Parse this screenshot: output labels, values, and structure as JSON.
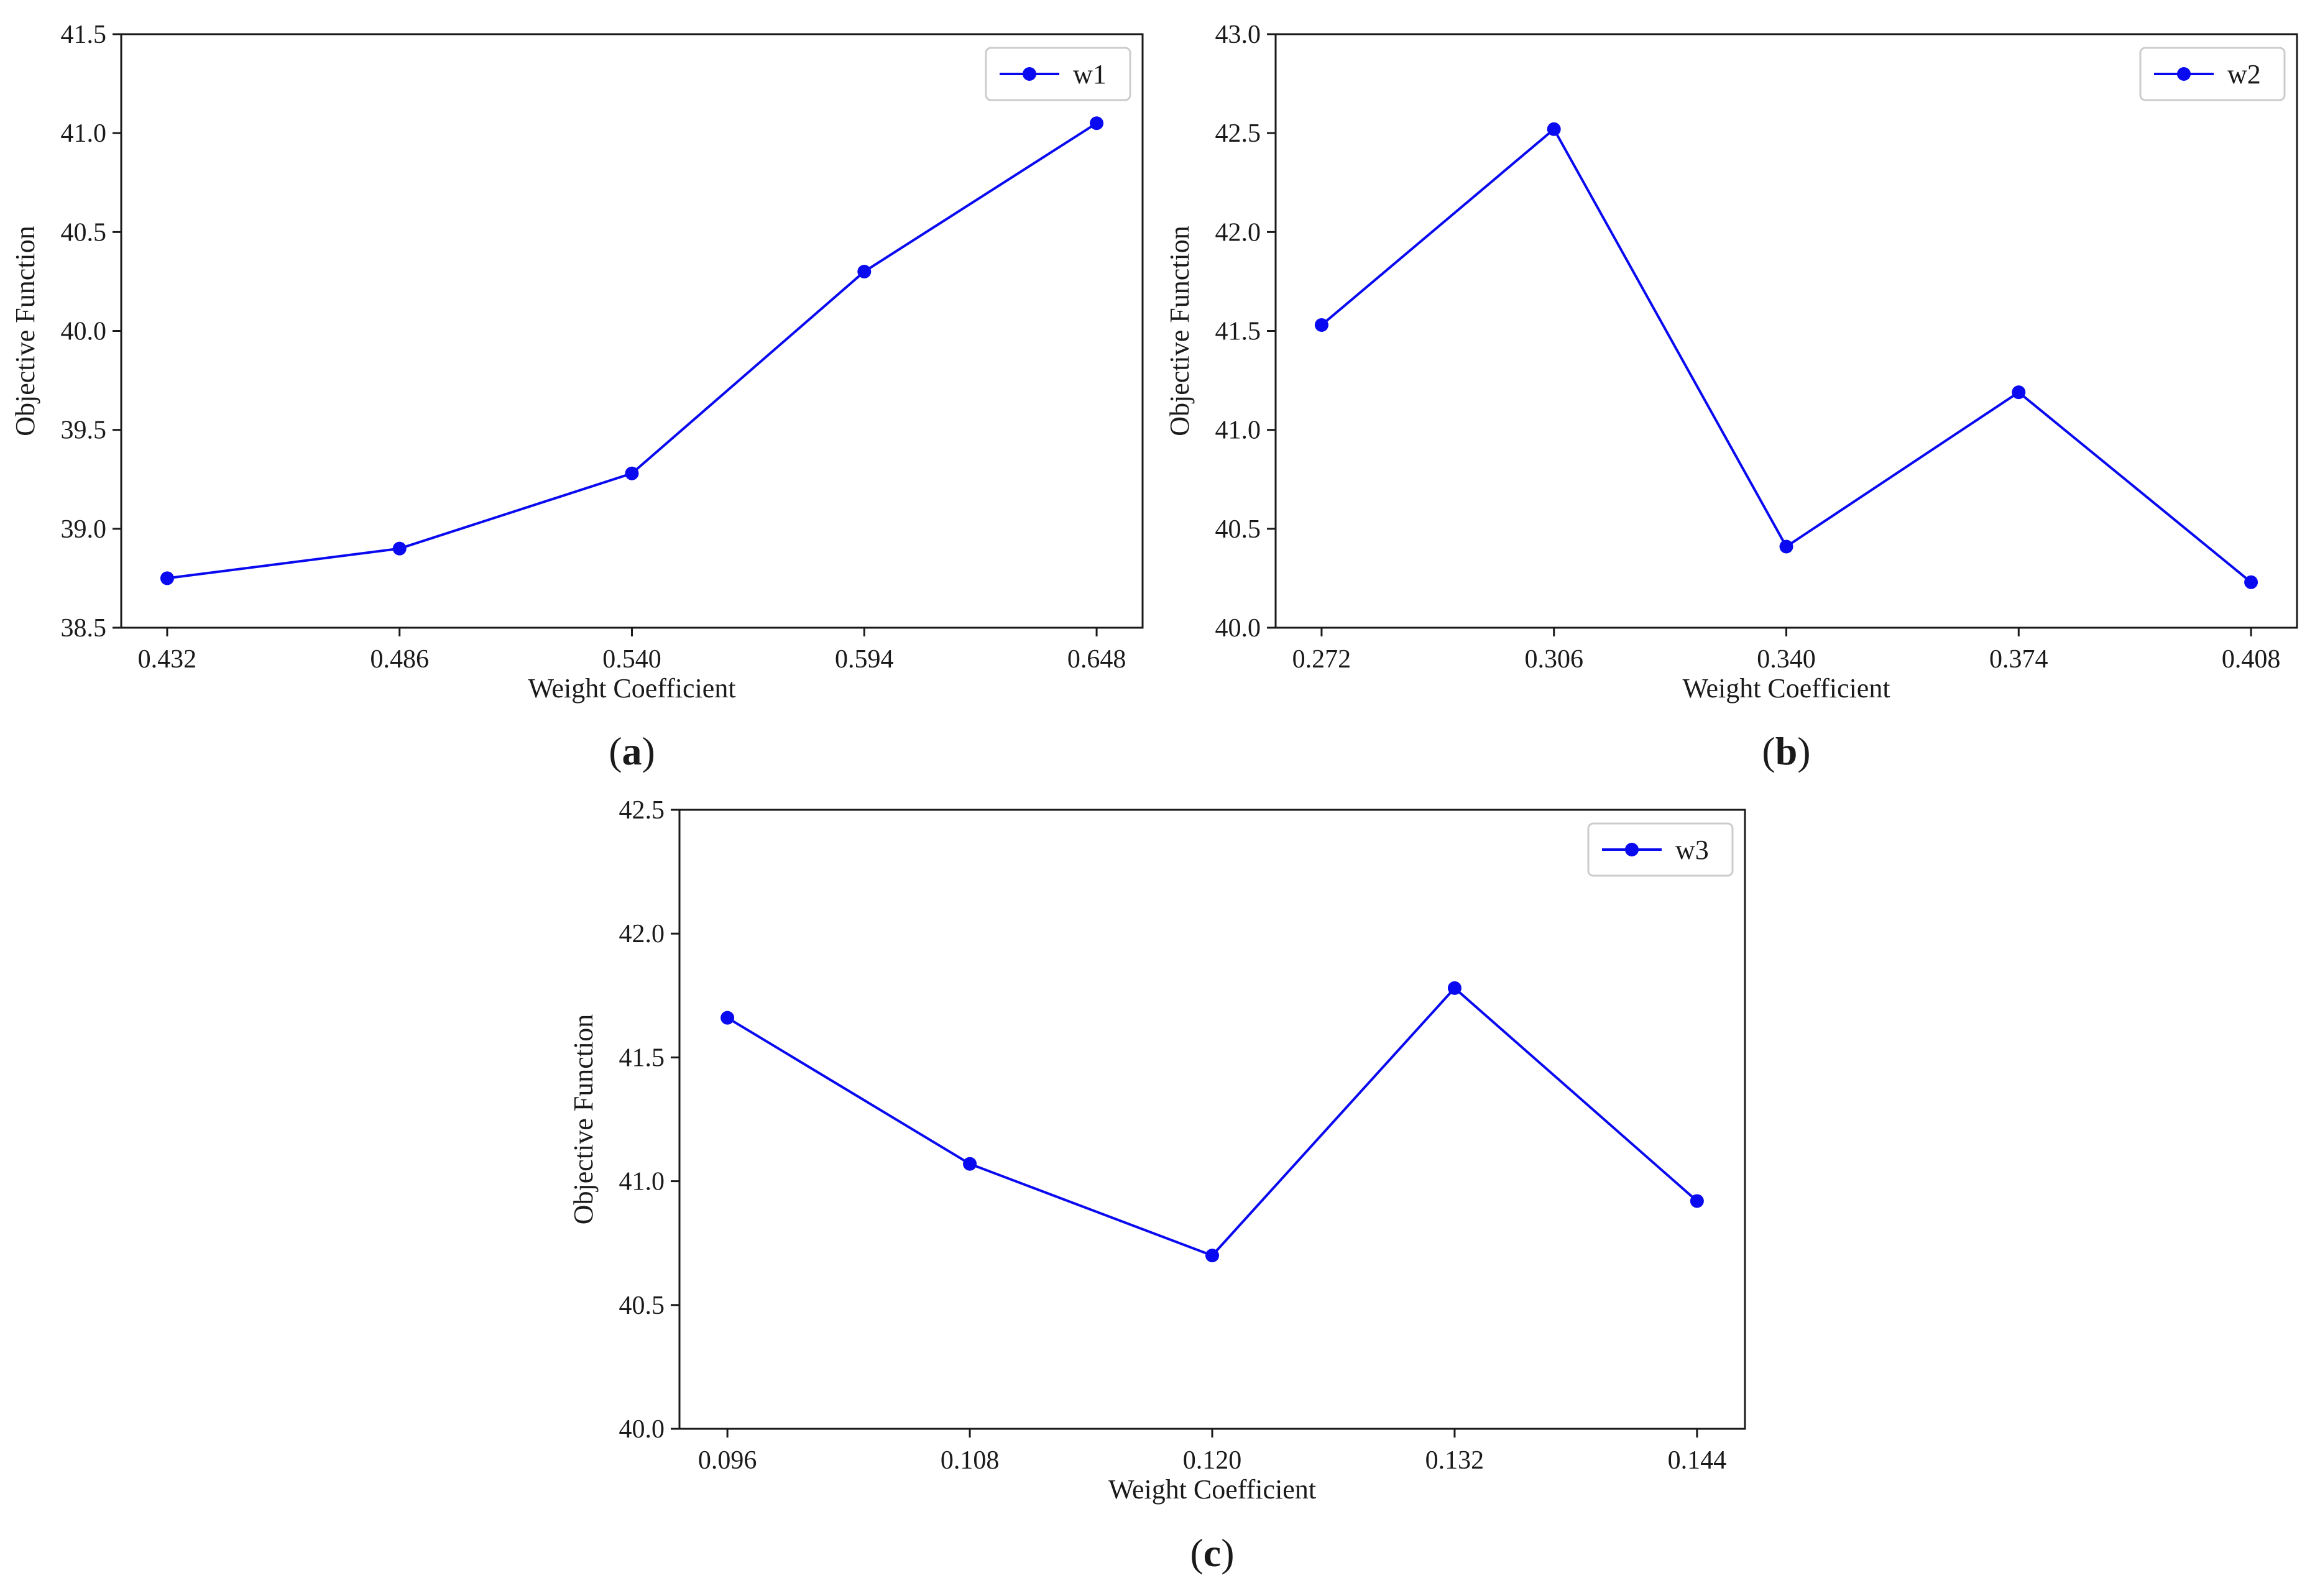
{
  "colors": {
    "series": "#0a0af0",
    "axis": "#1a1a1a",
    "background": "#ffffff"
  },
  "chart_data": [
    {
      "type": "line",
      "panel_label": "(a)",
      "panel_letter": "a",
      "xlabel": "Weight Coefficient",
      "ylabel": "Objective Function",
      "x": [
        "0.432",
        "0.486",
        "0.540",
        "0.594",
        "0.648"
      ],
      "series": [
        {
          "name": "w1",
          "values": [
            38.75,
            38.9,
            39.28,
            40.3,
            41.05
          ]
        }
      ],
      "ylim": [
        38.5,
        41.5
      ],
      "yticks": [
        "38.5",
        "39.0",
        "39.5",
        "40.0",
        "40.5",
        "41.0",
        "41.5"
      ],
      "grid": false,
      "legend_position": "top-right"
    },
    {
      "type": "line",
      "panel_label": "(b)",
      "panel_letter": "b",
      "xlabel": "Weight Coefficient",
      "ylabel": "Objective Function",
      "x": [
        "0.272",
        "0.306",
        "0.340",
        "0.374",
        "0.408"
      ],
      "series": [
        {
          "name": "w2",
          "values": [
            41.53,
            42.52,
            40.41,
            41.19,
            40.23
          ]
        }
      ],
      "ylim": [
        40.0,
        43.0
      ],
      "yticks": [
        "40.0",
        "40.5",
        "41.0",
        "41.5",
        "42.0",
        "42.5",
        "43.0"
      ],
      "grid": false,
      "legend_position": "top-right"
    },
    {
      "type": "line",
      "panel_label": "(c)",
      "panel_letter": "c",
      "xlabel": "Weight Coefficient",
      "ylabel": "Objective Function",
      "x": [
        "0.096",
        "0.108",
        "0.120",
        "0.132",
        "0.144"
      ],
      "series": [
        {
          "name": "w3",
          "values": [
            41.66,
            41.07,
            40.7,
            41.78,
            40.92
          ]
        }
      ],
      "ylim": [
        40.0,
        42.5
      ],
      "yticks": [
        "40.0",
        "40.5",
        "41.0",
        "41.5",
        "42.0",
        "42.5"
      ],
      "grid": false,
      "legend_position": "top-right"
    }
  ]
}
